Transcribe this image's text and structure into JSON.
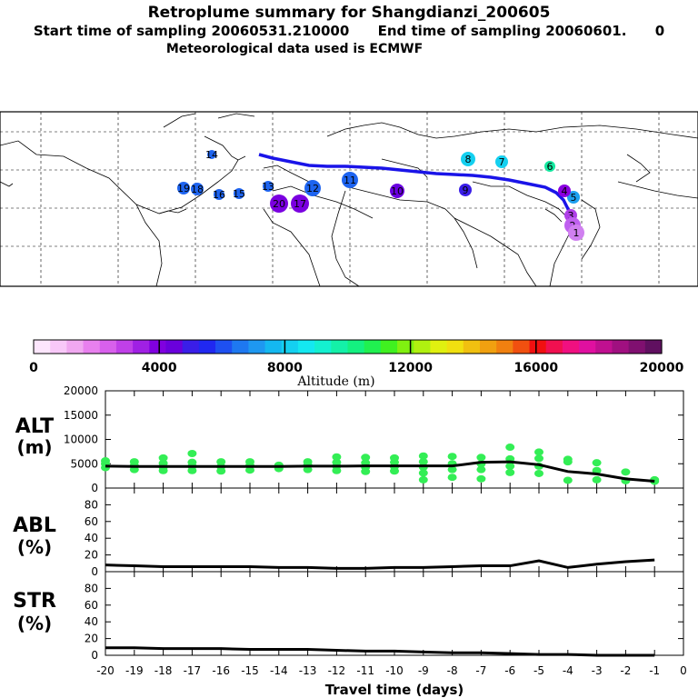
{
  "header": {
    "title": "Retroplume summary for Shangdianzi_200605",
    "sampling_line": "Start time of sampling 20060531.210000      End time of sampling 20060601.      0",
    "met_line": "Meteorological data used is ECMWF"
  },
  "map": {
    "trajectory_color": "#1a14e8",
    "plume_points": [
      {
        "label": "20",
        "color": "#7a00e0"
      },
      {
        "label": "17",
        "color": "#7a00e0"
      },
      {
        "label": "19",
        "color": "#1e64f0"
      },
      {
        "label": "18",
        "color": "#1e64f0"
      },
      {
        "label": "16",
        "color": "#1e64f0"
      },
      {
        "label": "15",
        "color": "#1e64f0"
      },
      {
        "label": "14",
        "color": "#1e64f0"
      },
      {
        "label": "13",
        "color": "#1e64f0"
      },
      {
        "label": "12",
        "color": "#1e64f0"
      },
      {
        "label": "11",
        "color": "#1e64f0"
      },
      {
        "label": "10",
        "color": "#6a00e0"
      },
      {
        "label": "9",
        "color": "#3a1ee8"
      },
      {
        "label": "8",
        "color": "#14d0f0"
      },
      {
        "label": "7",
        "color": "#14d0f0"
      },
      {
        "label": "6",
        "color": "#14e8a0"
      },
      {
        "label": "5",
        "color": "#1ea0f0"
      },
      {
        "label": "4",
        "color": "#8a00e0"
      },
      {
        "label": "3",
        "color": "#b040e8"
      },
      {
        "label": "2",
        "color": "#c060f0"
      },
      {
        "label": "1",
        "color": "#d080f0"
      }
    ]
  },
  "colorbar": {
    "ticks": [
      "0",
      "4000",
      "8000",
      "12000",
      "16000",
      "20000"
    ],
    "label": "Altitude (m)",
    "colors": [
      "#fde6fd",
      "#f8c8f8",
      "#f0a8f0",
      "#e880ee",
      "#d860ec",
      "#c040e8",
      "#a020e4",
      "#8000e0",
      "#6a00dc",
      "#3a1ee8",
      "#2028f0",
      "#1e50f0",
      "#1e78f0",
      "#1e98f0",
      "#14b8f0",
      "#14d0f0",
      "#14e8f0",
      "#14f0d0",
      "#14f0a8",
      "#14f080",
      "#20f050",
      "#40f020",
      "#80f010",
      "#b0f010",
      "#e0f010",
      "#f0e010",
      "#f0c010",
      "#f0a010",
      "#f08010",
      "#f05010",
      "#f01010",
      "#f01050",
      "#f01080",
      "#e010a0",
      "#c01090",
      "#a01080",
      "#801070",
      "#601060"
    ]
  },
  "panels": {
    "alt": {
      "label_line1": "ALT",
      "label_line2": "(m)",
      "yticks": [
        "20000",
        "15000",
        "10000",
        "5000",
        "0"
      ]
    },
    "abl": {
      "label_line1": "ABL",
      "label_line2": "(%)",
      "yticks": [
        "80",
        "60",
        "40",
        "20",
        "0"
      ]
    },
    "str": {
      "label_line1": "STR",
      "label_line2": "(%)",
      "yticks": [
        "80",
        "60",
        "40",
        "20",
        "0"
      ]
    },
    "xticks": [
      "-20",
      "-19",
      "-18",
      "-17",
      "-16",
      "-15",
      "-14",
      "-13",
      "-12",
      "-11",
      "-10",
      "-9",
      "-8",
      "-7",
      "-6",
      "-5",
      "-4",
      "-3",
      "-2",
      "-1",
      "0"
    ],
    "xlabel": "Travel time (days)"
  },
  "chart_data": [
    {
      "type": "line",
      "title": "ALT",
      "ylabel": "ALT (m)",
      "xlabel": "Travel time (days)",
      "xlim": [
        -20,
        0
      ],
      "ylim": [
        0,
        20000
      ],
      "x": [
        -20,
        -19,
        -18,
        -17,
        -16,
        -15,
        -14,
        -13,
        -12,
        -11,
        -10,
        -9,
        -8,
        -7,
        -6,
        -5,
        -4,
        -3,
        -2,
        -1
      ],
      "series": [
        {
          "name": "mean altitude",
          "color": "#000000",
          "values": [
            4500,
            4450,
            4450,
            4450,
            4450,
            4450,
            4450,
            4500,
            4500,
            4550,
            4550,
            4550,
            4550,
            5300,
            5400,
            4800,
            3400,
            2900,
            1900,
            1400
          ]
        },
        {
          "name": "plume spread",
          "color": "#33ee55",
          "scatter": true,
          "points": [
            [
              -20,
              4200
            ],
            [
              -20,
              5000
            ],
            [
              -20,
              5600
            ],
            [
              -19,
              3800
            ],
            [
              -19,
              4600
            ],
            [
              -19,
              5400
            ],
            [
              -18,
              3600
            ],
            [
              -18,
              4300
            ],
            [
              -18,
              5100
            ],
            [
              -18,
              6200
            ],
            [
              -17,
              3600
            ],
            [
              -17,
              4500
            ],
            [
              -17,
              5300
            ],
            [
              -17,
              7100
            ],
            [
              -16,
              3500
            ],
            [
              -16,
              4400
            ],
            [
              -16,
              5400
            ],
            [
              -15,
              3700
            ],
            [
              -15,
              4600
            ],
            [
              -15,
              5400
            ],
            [
              -14,
              4000
            ],
            [
              -14,
              4700
            ],
            [
              -13,
              3800
            ],
            [
              -13,
              4700
            ],
            [
              -13,
              5400
            ],
            [
              -12,
              3600
            ],
            [
              -12,
              4500
            ],
            [
              -12,
              5300
            ],
            [
              -12,
              6400
            ],
            [
              -11,
              3400
            ],
            [
              -11,
              4300
            ],
            [
              -11,
              5200
            ],
            [
              -11,
              6300
            ],
            [
              -10,
              3500
            ],
            [
              -10,
              4400
            ],
            [
              -10,
              5300
            ],
            [
              -10,
              6200
            ],
            [
              -9,
              1700
            ],
            [
              -9,
              3100
            ],
            [
              -9,
              4300
            ],
            [
              -9,
              5400
            ],
            [
              -9,
              6600
            ],
            [
              -8,
              2200
            ],
            [
              -8,
              3800
            ],
            [
              -8,
              5000
            ],
            [
              -8,
              6500
            ],
            [
              -7,
              1900
            ],
            [
              -7,
              3800
            ],
            [
              -7,
              5000
            ],
            [
              -7,
              6300
            ],
            [
              -6,
              3200
            ],
            [
              -6,
              4500
            ],
            [
              -6,
              6000
            ],
            [
              -6,
              8400
            ],
            [
              -5,
              3000
            ],
            [
              -5,
              4500
            ],
            [
              -5,
              6100
            ],
            [
              -5,
              7400
            ],
            [
              -4,
              1600
            ],
            [
              -4,
              5400
            ],
            [
              -4,
              5900
            ],
            [
              -3,
              1700
            ],
            [
              -3,
              3600
            ],
            [
              -3,
              5200
            ],
            [
              -2,
              1500
            ],
            [
              -2,
              3300
            ],
            [
              -1,
              1400
            ],
            [
              -1,
              1700
            ]
          ]
        }
      ]
    },
    {
      "type": "line",
      "title": "ABL",
      "ylabel": "ABL (%)",
      "xlabel": "Travel time (days)",
      "xlim": [
        -20,
        0
      ],
      "ylim": [
        0,
        100
      ],
      "x": [
        -20,
        -19,
        -18,
        -17,
        -16,
        -15,
        -14,
        -13,
        -12,
        -11,
        -10,
        -9,
        -8,
        -7,
        -6,
        -5,
        -4,
        -3,
        -2,
        -1
      ],
      "series": [
        {
          "name": "ABL fraction",
          "color": "#000000",
          "values": [
            8,
            7,
            6,
            6,
            6,
            6,
            5,
            5,
            4,
            4,
            5,
            5,
            6,
            7,
            7,
            13,
            5,
            9,
            12,
            14
          ]
        }
      ]
    },
    {
      "type": "line",
      "title": "STR",
      "ylabel": "STR (%)",
      "xlabel": "Travel time (days)",
      "xlim": [
        -20,
        0
      ],
      "ylim": [
        0,
        100
      ],
      "x": [
        -20,
        -19,
        -18,
        -17,
        -16,
        -15,
        -14,
        -13,
        -12,
        -11,
        -10,
        -9,
        -8,
        -7,
        -6,
        -5,
        -4,
        -3,
        -2,
        -1
      ],
      "series": [
        {
          "name": "stratosphere fraction",
          "color": "#000000",
          "values": [
            9,
            9,
            8,
            8,
            8,
            7,
            7,
            7,
            6,
            5,
            5,
            4,
            3,
            3,
            2,
            1,
            1,
            0,
            0,
            0
          ]
        }
      ]
    }
  ]
}
